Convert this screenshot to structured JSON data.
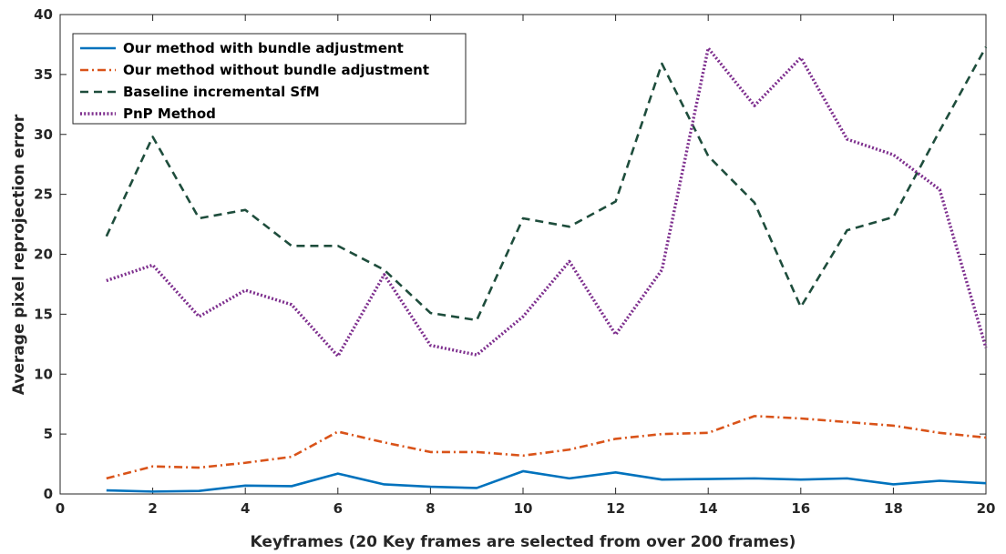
{
  "chart_data": {
    "type": "line",
    "title": "",
    "xlabel": "Keyframes (20 Key frames are selected from over 200 frames)",
    "ylabel": "Average pixel reprojection error",
    "xlim": [
      0,
      20
    ],
    "ylim": [
      0,
      40
    ],
    "xticks": [
      0,
      2,
      4,
      6,
      8,
      10,
      12,
      14,
      16,
      18,
      20
    ],
    "yticks": [
      0,
      5,
      10,
      15,
      20,
      25,
      30,
      35,
      40
    ],
    "grid": false,
    "legend_position": "top-left",
    "x": [
      1,
      2,
      3,
      4,
      5,
      6,
      7,
      8,
      9,
      10,
      11,
      12,
      13,
      14,
      15,
      16,
      17,
      18,
      19,
      20
    ],
    "series": [
      {
        "name": "Our method with bundle adjustment",
        "color": "#0072bd",
        "style": "solid",
        "values": [
          0.3,
          0.2,
          0.25,
          0.7,
          0.65,
          1.7,
          0.8,
          0.6,
          0.5,
          1.9,
          1.3,
          1.8,
          1.2,
          1.25,
          1.3,
          1.2,
          1.3,
          0.8,
          1.1,
          0.9
        ]
      },
      {
        "name": "Our method without bundle adjustment",
        "color": "#d95319",
        "style": "dashdot",
        "values": [
          1.3,
          2.3,
          2.2,
          2.6,
          3.1,
          5.2,
          4.3,
          3.5,
          3.5,
          3.2,
          3.7,
          4.6,
          5.0,
          5.1,
          6.5,
          6.3,
          6.0,
          5.7,
          5.1,
          4.7
        ]
      },
      {
        "name": "Baseline incremental SfM",
        "color": "#1e4d3c",
        "style": "dashed",
        "values": [
          21.5,
          29.8,
          23.0,
          23.7,
          20.7,
          20.7,
          18.7,
          15.1,
          14.5,
          23.0,
          22.3,
          24.4,
          35.9,
          28.2,
          24.3,
          15.6,
          22.0,
          23.1,
          30.3,
          37.3
        ]
      },
      {
        "name": "PnP Method",
        "color": "#7e2f8e",
        "style": "dotted",
        "values": [
          17.8,
          19.1,
          14.8,
          17.0,
          15.8,
          11.5,
          18.3,
          12.4,
          11.6,
          14.8,
          19.4,
          13.3,
          18.7,
          37.2,
          32.4,
          36.4,
          29.6,
          28.3,
          25.4,
          12.2
        ]
      }
    ]
  }
}
